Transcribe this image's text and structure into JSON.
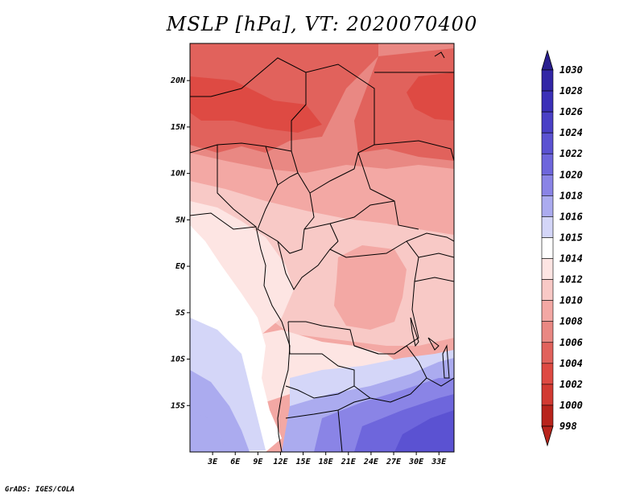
{
  "title": "MSLP [hPa], VT: 2020070400",
  "credit": "GrADS: IGES/COLA",
  "map": {
    "region": "Central Africa",
    "variable": "Mean sea level pressure",
    "units": "hPa",
    "lon_range": [
      0,
      35
    ],
    "lat_range": [
      -20,
      24
    ],
    "lat_ticks": [
      {
        "value": 20,
        "label": "20N"
      },
      {
        "value": 15,
        "label": "15N"
      },
      {
        "value": 10,
        "label": "10N"
      },
      {
        "value": 5,
        "label": "5N"
      },
      {
        "value": 0,
        "label": "EQ"
      },
      {
        "value": -5,
        "label": "5S"
      },
      {
        "value": -10,
        "label": "10S"
      },
      {
        "value": -15,
        "label": "15S"
      }
    ],
    "lon_ticks": [
      {
        "value": 3,
        "label": "3E"
      },
      {
        "value": 6,
        "label": "6E"
      },
      {
        "value": 9,
        "label": "9E"
      },
      {
        "value": 12,
        "label": "12E"
      },
      {
        "value": 15,
        "label": "15E"
      },
      {
        "value": 18,
        "label": "18E"
      },
      {
        "value": 21,
        "label": "21E"
      },
      {
        "value": 24,
        "label": "24E"
      },
      {
        "value": 27,
        "label": "27E"
      },
      {
        "value": 30,
        "label": "30E"
      },
      {
        "value": 33,
        "label": "33E"
      }
    ]
  },
  "colorbar": {
    "levels": [
      {
        "label": "1030",
        "color": "#2a1f8f"
      },
      {
        "label": "1028",
        "color": "#3226a6"
      },
      {
        "label": "1026",
        "color": "#3b30b8"
      },
      {
        "label": "1024",
        "color": "#4a40c6"
      },
      {
        "label": "1022",
        "color": "#5b52d2"
      },
      {
        "label": "1020",
        "color": "#6e66dc"
      },
      {
        "label": "1018",
        "color": "#8a84e6"
      },
      {
        "label": "1016",
        "color": "#ababef"
      },
      {
        "label": "1015",
        "color": "#d4d6f8"
      },
      {
        "label": "1014",
        "color": "#ffffff"
      },
      {
        "label": "1012",
        "color": "#fde5e3"
      },
      {
        "label": "1010",
        "color": "#f8c9c6"
      },
      {
        "label": "1008",
        "color": "#f3a8a4"
      },
      {
        "label": "1006",
        "color": "#e98883"
      },
      {
        "label": "1004",
        "color": "#e1625c"
      },
      {
        "label": "1002",
        "color": "#de4a43"
      },
      {
        "label": "1000",
        "color": "#d23a32"
      },
      {
        "label": "998",
        "color": "#b8241c"
      }
    ],
    "top_triangle_color": "#2a1f8f",
    "bottom_triangle_color": "#b8241c"
  },
  "field_colors": {
    "hp_strong": "#5b52d2",
    "hp_mid": "#8a84e6",
    "hp_light": "#ababef",
    "hp_pale": "#d4d6f8",
    "neutral": "#ffffff",
    "lp_1012": "#fde5e3",
    "lp_1010": "#f8c9c6",
    "lp_1008": "#f3a8a4",
    "lp_1006": "#e98883",
    "lp_1004": "#e1625c",
    "lp_1002": "#de4a43"
  }
}
